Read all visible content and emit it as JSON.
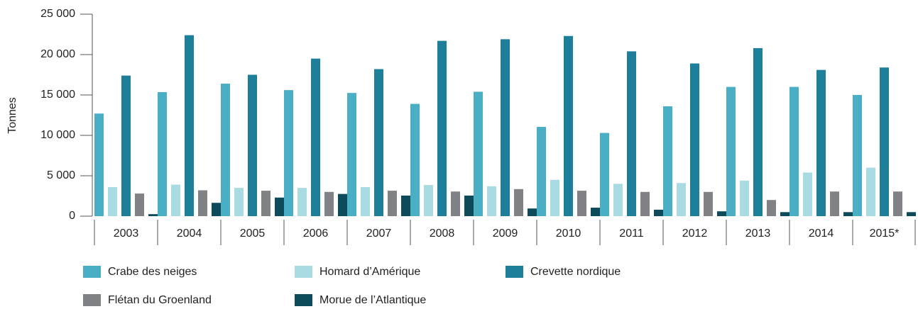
{
  "chart_data": {
    "type": "bar",
    "y_label": "Tonnes",
    "categories": [
      "2003",
      "2004",
      "2005",
      "2006",
      "2007",
      "2008",
      "2009",
      "2010",
      "2011",
      "2012",
      "2013",
      "2014",
      "2015*"
    ],
    "series": [
      {
        "name": "Crabe des neiges",
        "color": "#4aaec4",
        "values": [
          12700,
          15350,
          16400,
          15600,
          15250,
          13900,
          15400,
          11050,
          10300,
          13600,
          16000,
          16000,
          15000
        ]
      },
      {
        "name": "Homard d’Amérique",
        "color": "#a8dbe2",
        "values": [
          3600,
          3900,
          3500,
          3500,
          3600,
          3850,
          3700,
          4500,
          4000,
          4100,
          4400,
          5400,
          6000
        ]
      },
      {
        "name": "Crevette nordique",
        "color": "#1e7f9a",
        "values": [
          17400,
          22400,
          17500,
          19500,
          18200,
          21700,
          21900,
          22300,
          20400,
          18900,
          20800,
          18100,
          18400
        ]
      },
      {
        "name": "Flétan du Groenland",
        "color": "#808285",
        "values": [
          2800,
          3200,
          3150,
          3000,
          3150,
          3050,
          3350,
          3150,
          3000,
          3000,
          2000,
          3050,
          3050
        ]
      },
      {
        "name": "Morue de l’Atlantique",
        "color": "#0d4a5a",
        "values": [
          250,
          1650,
          2300,
          2750,
          2550,
          2550,
          950,
          1050,
          800,
          600,
          500,
          500,
          500
        ]
      }
    ],
    "ylim": [
      0,
      25000
    ],
    "yticks": [
      0,
      {
        "value": 5000,
        "label": "5 000"
      },
      {
        "value": 10000,
        "label": "10 000"
      },
      {
        "value": 15000,
        "label": "15 000"
      },
      {
        "value": 20000,
        "label": "20 000"
      },
      {
        "value": 25000,
        "label": "25 000"
      }
    ]
  }
}
